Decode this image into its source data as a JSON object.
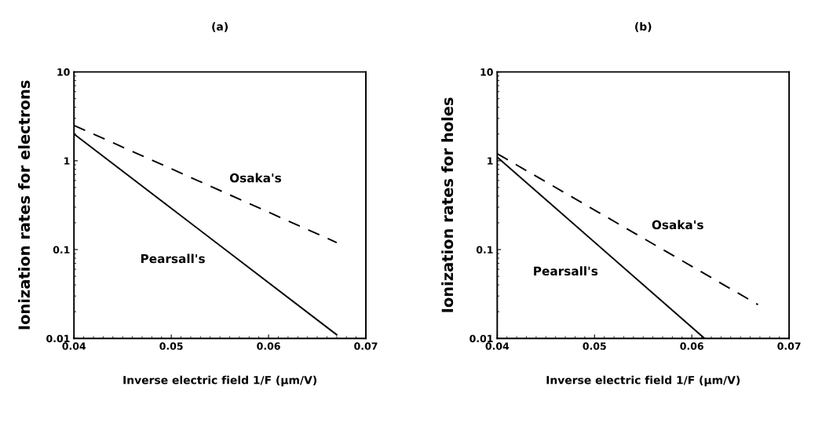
{
  "chart_data": [
    {
      "type": "line",
      "title": "(a)",
      "xlabel": "Inverse electric field 1/F (µm/V)",
      "ylabel": "Ionization rates for electrons",
      "log": "y",
      "xlim": [
        0.04,
        0.07
      ],
      "ylim": [
        0.01,
        10
      ],
      "xticks": [
        0.04,
        0.05,
        0.06,
        0.07
      ],
      "yticks": [
        0.01,
        0.1,
        1,
        10
      ],
      "grid": false,
      "legend": false,
      "series": [
        {
          "name": "Pearsall's",
          "color": "#000000",
          "line_style": "solid",
          "x": [
            0.04,
            0.067
          ],
          "values": [
            2.0,
            0.011
          ]
        },
        {
          "name": "Osaka's",
          "color": "#000000",
          "line_style": "dashed",
          "x": [
            0.04,
            0.067
          ],
          "values": [
            2.5,
            0.12
          ]
        }
      ]
    },
    {
      "type": "line",
      "title": "(b)",
      "xlabel": "Inverse electric field 1/F (µm/V)",
      "ylabel": "Ionization rates for holes",
      "log": "y",
      "xlim": [
        0.04,
        0.07
      ],
      "ylim": [
        0.01,
        10
      ],
      "xticks": [
        0.04,
        0.05,
        0.06,
        0.07
      ],
      "yticks": [
        0.01,
        0.1,
        1,
        10
      ],
      "grid": false,
      "legend": false,
      "series": [
        {
          "name": "Pearsall's",
          "color": "#000000",
          "line_style": "solid",
          "x": [
            0.04,
            0.0613
          ],
          "values": [
            1.1,
            0.01
          ]
        },
        {
          "name": "Osaka's",
          "color": "#000000",
          "line_style": "dashed",
          "x": [
            0.04,
            0.0668
          ],
          "values": [
            1.2,
            0.024
          ]
        }
      ]
    }
  ]
}
